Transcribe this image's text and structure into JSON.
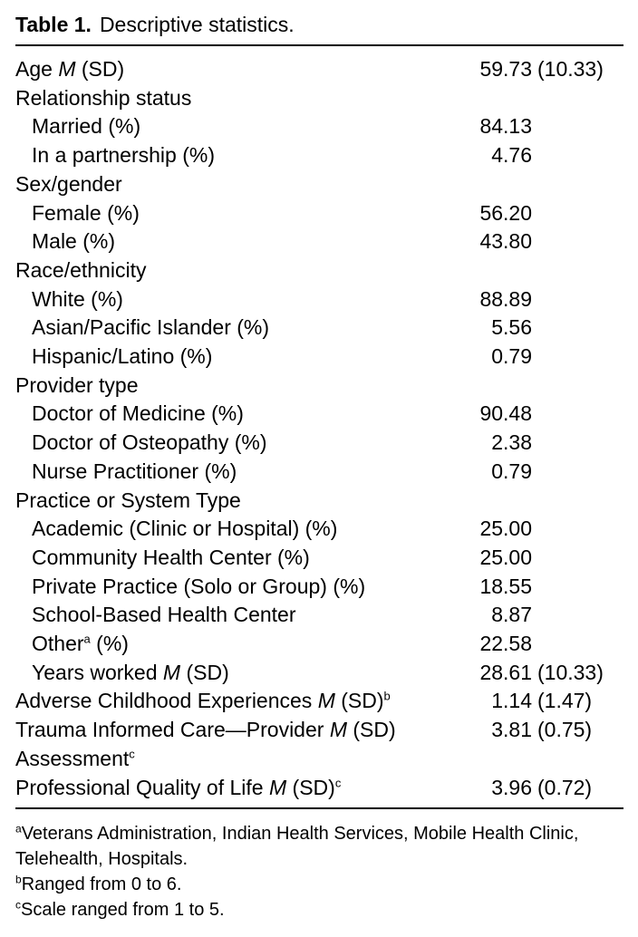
{
  "title": {
    "label": "Table 1.",
    "caption": "Descriptive statistics."
  },
  "table": {
    "rows": [
      {
        "indent": 0,
        "parts": [
          {
            "t": "Age "
          },
          {
            "i": "M"
          },
          {
            "t": " (SD)"
          }
        ],
        "value": "59.73",
        "sd": "(10.33)"
      },
      {
        "indent": 0,
        "parts": [
          {
            "t": "Relationship status"
          }
        ]
      },
      {
        "indent": 1,
        "parts": [
          {
            "t": "Married (%)"
          }
        ],
        "value": "84.13"
      },
      {
        "indent": 1,
        "parts": [
          {
            "t": "In a partnership (%)"
          }
        ],
        "value": "4.76"
      },
      {
        "indent": 0,
        "parts": [
          {
            "t": "Sex/gender"
          }
        ]
      },
      {
        "indent": 1,
        "parts": [
          {
            "t": "Female (%)"
          }
        ],
        "value": "56.20"
      },
      {
        "indent": 1,
        "parts": [
          {
            "t": "Male (%)"
          }
        ],
        "value": "43.80"
      },
      {
        "indent": 0,
        "parts": [
          {
            "t": "Race/ethnicity"
          }
        ]
      },
      {
        "indent": 1,
        "parts": [
          {
            "t": "White (%)"
          }
        ],
        "value": "88.89"
      },
      {
        "indent": 1,
        "parts": [
          {
            "t": "Asian/Pacific Islander (%)"
          }
        ],
        "value": "5.56"
      },
      {
        "indent": 1,
        "parts": [
          {
            "t": "Hispanic/Latino (%)"
          }
        ],
        "value": "0.79"
      },
      {
        "indent": 0,
        "parts": [
          {
            "t": "Provider type"
          }
        ]
      },
      {
        "indent": 1,
        "parts": [
          {
            "t": "Doctor of Medicine (%)"
          }
        ],
        "value": "90.48"
      },
      {
        "indent": 1,
        "parts": [
          {
            "t": "Doctor of Osteopathy (%)"
          }
        ],
        "value": "2.38"
      },
      {
        "indent": 1,
        "parts": [
          {
            "t": "Nurse Practitioner (%)"
          }
        ],
        "value": "0.79"
      },
      {
        "indent": 0,
        "parts": [
          {
            "t": "Practice or System Type"
          }
        ]
      },
      {
        "indent": 1,
        "parts": [
          {
            "t": "Academic (Clinic or Hospital) (%)"
          }
        ],
        "value": "25.00"
      },
      {
        "indent": 1,
        "parts": [
          {
            "t": "Community Health Center (%)"
          }
        ],
        "value": "25.00"
      },
      {
        "indent": 1,
        "parts": [
          {
            "t": "Private Practice (Solo or Group) (%)"
          }
        ],
        "value": "18.55"
      },
      {
        "indent": 1,
        "parts": [
          {
            "t": "School-Based Health Center"
          }
        ],
        "value": "8.87"
      },
      {
        "indent": 1,
        "parts": [
          {
            "t": "Other"
          },
          {
            "s": "a"
          },
          {
            "t": " (%)"
          }
        ],
        "value": "22.58"
      },
      {
        "indent": 1,
        "parts": [
          {
            "t": "Years worked "
          },
          {
            "i": "M"
          },
          {
            "t": " (SD)"
          }
        ],
        "value": "28.61",
        "sd": "(10.33)"
      },
      {
        "indent": 0,
        "parts": [
          {
            "t": "Adverse Childhood Experiences "
          },
          {
            "i": "M"
          },
          {
            "t": " (SD)"
          },
          {
            "s": "b"
          }
        ],
        "value": "1.14",
        "sd": "(1.47)"
      },
      {
        "indent": 0,
        "parts": [
          {
            "t": "Trauma Informed Care—Provider "
          },
          {
            "i": "M"
          },
          {
            "t": " (SD)"
          }
        ],
        "value": "3.81",
        "sd": "(0.75)"
      },
      {
        "indent": 0,
        "parts": [
          {
            "t": "Assessment"
          },
          {
            "s": "c"
          }
        ]
      },
      {
        "indent": 0,
        "parts": [
          {
            "t": "Professional Quality of Life "
          },
          {
            "i": "M"
          },
          {
            "t": " (SD)"
          },
          {
            "s": "c"
          }
        ],
        "value": "3.96",
        "sd": "(0.72)"
      }
    ]
  },
  "footnotes": [
    {
      "sup": "a",
      "text": "Veterans Administration, Indian Health Services, Mobile Health Clinic, Telehealth, Hospitals."
    },
    {
      "sup": "b",
      "text": "Ranged from 0 to 6."
    },
    {
      "sup": "c",
      "text": "Scale ranged from 1 to 5."
    }
  ]
}
